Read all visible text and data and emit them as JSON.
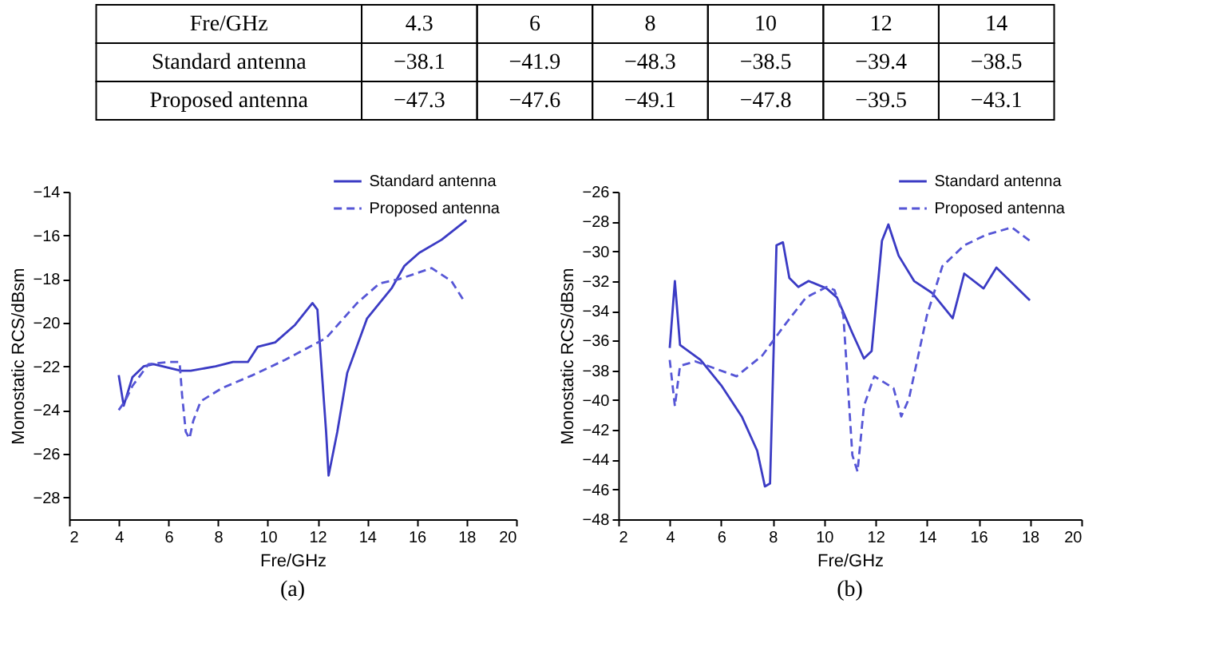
{
  "chart_data": [
    {
      "type": "other",
      "xlabel": "Fre/GHz",
      "categories": [
        "4.3",
        "6",
        "8",
        "10",
        "12",
        "14"
      ],
      "data_labels": true,
      "series": [
        {
          "name": "Standard antenna",
          "values": [
            -38.1,
            -41.9,
            -48.3,
            -38.5,
            -39.4,
            -38.5
          ]
        },
        {
          "name": "Proposed antenna",
          "values": [
            -47.3,
            -47.6,
            -49.1,
            -47.8,
            -39.5,
            -43.1
          ]
        }
      ]
    },
    {
      "type": "line",
      "xlabel": "Fre/GHz",
      "ylabel": "Monostatic RCS/dBsm",
      "xlim": [
        2,
        20
      ],
      "xticks": [
        2,
        4,
        6,
        8,
        10,
        12,
        14,
        16,
        18,
        20
      ],
      "ylim": [
        -29,
        -14
      ],
      "yticks": [
        -28,
        -26,
        -24,
        -22,
        -20,
        -18,
        -16,
        -14
      ],
      "grid": false,
      "legend": "top right",
      "annotations": [
        "(a)"
      ],
      "series": [
        {
          "name": "Standard antenna",
          "color": "#3b3bc4",
          "line_style": "solid",
          "x": [
            4.0,
            4.2,
            4.55,
            5.0,
            5.4,
            6.5,
            6.9,
            7.9,
            8.6,
            9.2,
            9.6,
            10.3,
            11.1,
            11.8,
            12.0,
            12.35,
            12.45,
            12.8,
            13.2,
            14.0,
            15.0,
            15.5,
            16.1,
            17.0,
            18.0
          ],
          "values": [
            -22.4,
            -23.8,
            -22.5,
            -22.0,
            -21.9,
            -22.2,
            -22.2,
            -22.0,
            -21.8,
            -21.8,
            -21.1,
            -20.9,
            -20.1,
            -19.1,
            -19.4,
            -25.0,
            -27.0,
            -25.0,
            -22.3,
            -19.8,
            -18.4,
            -17.4,
            -16.8,
            -16.2,
            -15.3
          ]
        },
        {
          "name": "Proposed antenna",
          "color": "#5656d6",
          "line_style": "dashed",
          "x": [
            4.0,
            4.25,
            4.55,
            5.2,
            6.0,
            6.45,
            6.55,
            6.7,
            6.85,
            7.0,
            7.3,
            8.15,
            9.4,
            10.7,
            12.35,
            13.6,
            14.5,
            15.3,
            16.6,
            17.4,
            17.9
          ],
          "values": [
            -24.0,
            -23.6,
            -22.9,
            -21.9,
            -21.8,
            -21.8,
            -23.3,
            -25.0,
            -25.3,
            -24.5,
            -23.6,
            -23.0,
            -22.4,
            -21.7,
            -20.7,
            -19.1,
            -18.2,
            -18.0,
            -17.5,
            -18.1,
            -19.0
          ]
        }
      ]
    },
    {
      "type": "line",
      "xlabel": "Fre/GHz",
      "ylabel": "Monostatic RCS/dBsm",
      "xlim": [
        2,
        20
      ],
      "xticks": [
        2,
        4,
        6,
        8,
        10,
        12,
        14,
        16,
        18,
        20
      ],
      "ylim": [
        -48,
        -26
      ],
      "yticks": [
        -48,
        -46,
        -44,
        -42,
        -40,
        -38,
        -36,
        -34,
        -32,
        -30,
        -28,
        -26
      ],
      "grid": false,
      "legend": "top right",
      "annotations": [
        "(b)"
      ],
      "series": [
        {
          "name": "Standard antenna",
          "color": "#3b3bc4",
          "line_style": "solid",
          "x": [
            4.0,
            4.2,
            4.4,
            5.2,
            6.0,
            6.8,
            7.4,
            7.7,
            7.9,
            8.15,
            8.4,
            8.65,
            9.0,
            9.4,
            10.1,
            10.5,
            11.1,
            11.55,
            11.85,
            12.25,
            12.5,
            12.9,
            13.5,
            14.2,
            15.0,
            15.45,
            16.2,
            16.7,
            18.0
          ],
          "values": [
            -36.5,
            -32.0,
            -36.3,
            -37.3,
            -39.0,
            -41.1,
            -43.4,
            -45.8,
            -45.6,
            -29.6,
            -29.4,
            -31.8,
            -32.4,
            -32.0,
            -32.5,
            -33.1,
            -35.5,
            -37.2,
            -36.7,
            -29.3,
            -28.2,
            -30.3,
            -32.0,
            -32.8,
            -34.5,
            -31.5,
            -32.5,
            -31.1,
            -33.3
          ]
        },
        {
          "name": "Proposed antenna",
          "color": "#5656d6",
          "line_style": "dashed",
          "x": [
            4.0,
            4.2,
            4.4,
            5.0,
            5.8,
            6.6,
            7.6,
            8.45,
            9.3,
            10.1,
            10.4,
            10.75,
            11.1,
            11.3,
            11.55,
            11.95,
            12.7,
            13.0,
            13.3,
            14.0,
            14.6,
            15.45,
            16.3,
            17.3,
            18.0
          ],
          "values": [
            -37.3,
            -40.4,
            -37.7,
            -37.4,
            -37.9,
            -38.4,
            -37.0,
            -35.0,
            -33.1,
            -32.4,
            -32.6,
            -34.3,
            -43.7,
            -44.8,
            -40.4,
            -38.4,
            -39.2,
            -41.1,
            -39.9,
            -34.3,
            -31.0,
            -29.6,
            -28.9,
            -28.4,
            -29.3
          ]
        }
      ]
    }
  ]
}
